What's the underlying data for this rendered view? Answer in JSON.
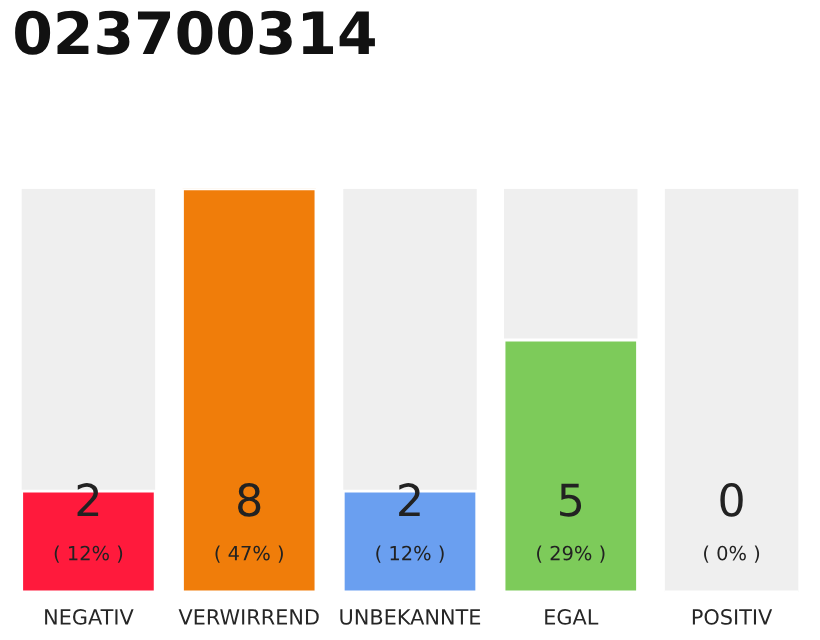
{
  "chart_data": {
    "type": "bar",
    "title": "023700314",
    "categories": [
      "NEGATIV",
      "VERWIRREND",
      "UNBEKANNTE",
      "EGAL",
      "POSITIV"
    ],
    "values": [
      2,
      8,
      2,
      5,
      0
    ],
    "colors": [
      "#ff1a3c",
      "#f07d0a",
      "#6a9ff0",
      "#7dcb5a",
      null
    ],
    "ylim": [
      0,
      8
    ],
    "tick_labels": "x",
    "grid": false,
    "data_labels": true,
    "annotations": [
      "( 12% )",
      "( 47% )",
      "( 12% )",
      "( 29% )",
      "( 0% )"
    ]
  }
}
